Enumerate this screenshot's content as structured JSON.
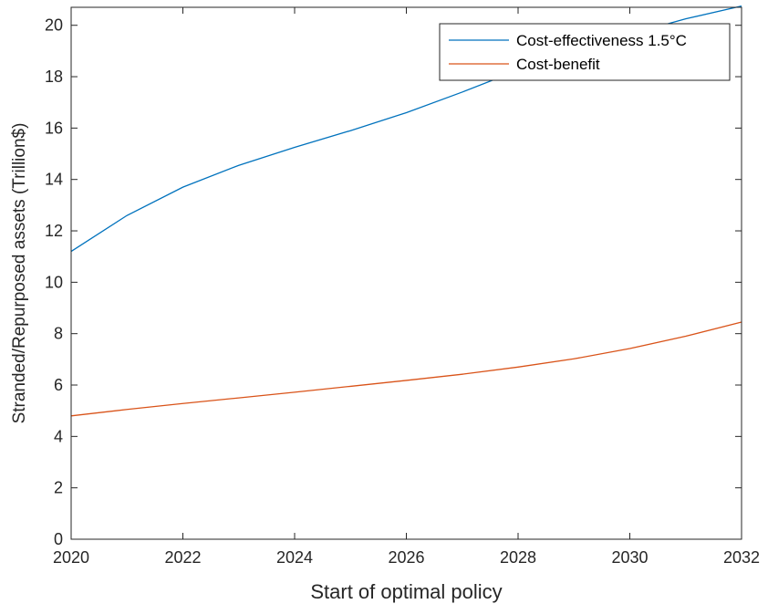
{
  "chart_data": {
    "type": "line",
    "title": "",
    "xlabel": "Start of optimal policy",
    "ylabel": "Stranded/Repurposed assets (Trillion$)",
    "xlim": [
      2020,
      2032
    ],
    "ylim": [
      0,
      20.7
    ],
    "xticks": [
      2020,
      2022,
      2024,
      2026,
      2028,
      2030,
      2032
    ],
    "yticks": [
      0,
      2,
      4,
      6,
      8,
      10,
      12,
      14,
      16,
      18,
      20
    ],
    "grid": false,
    "legend_position": "top-right",
    "x": [
      2020,
      2021,
      2022,
      2023,
      2024,
      2025,
      2026,
      2027,
      2028,
      2029,
      2030,
      2031,
      2032
    ],
    "series": [
      {
        "name": "Cost-effectiveness 1.5°C",
        "color": "#0072BD",
        "values": [
          11.2,
          12.6,
          13.7,
          14.55,
          15.25,
          15.9,
          16.6,
          17.4,
          18.25,
          19.0,
          19.65,
          20.25,
          20.75
        ]
      },
      {
        "name": "Cost-benefit",
        "color": "#D95319",
        "values": [
          4.8,
          5.05,
          5.28,
          5.5,
          5.72,
          5.95,
          6.18,
          6.42,
          6.7,
          7.02,
          7.42,
          7.9,
          8.45
        ]
      }
    ]
  }
}
